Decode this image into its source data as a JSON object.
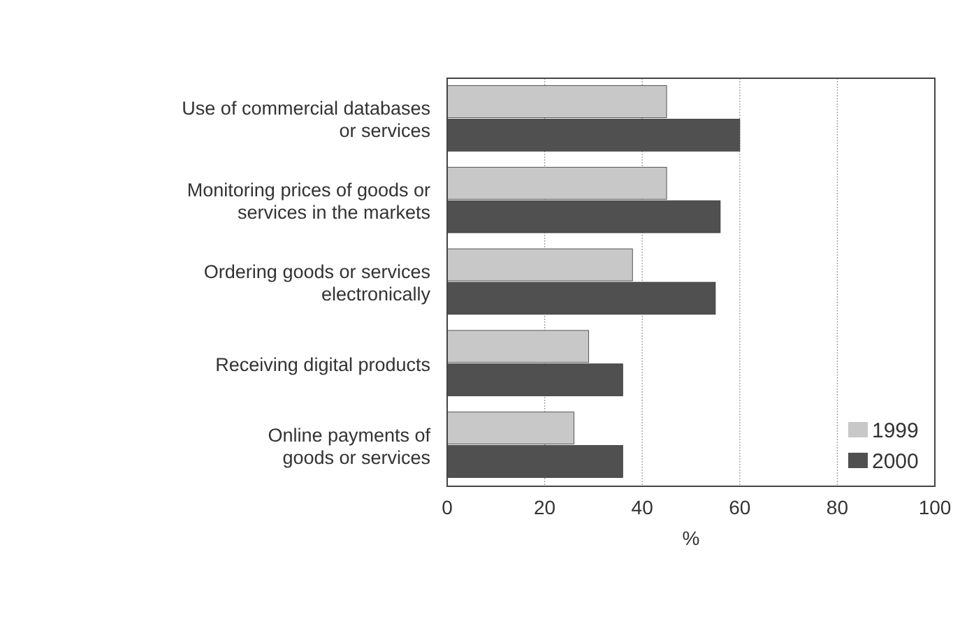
{
  "chart_data": {
    "type": "bar",
    "orientation": "horizontal",
    "xlabel": "%",
    "categories": [
      "Use of commercial databases\nor services",
      "Monitoring prices of goods or\nservices in the markets",
      "Ordering goods or services\nelectronically",
      "Receiving digital products",
      "Online payments of\ngoods or services"
    ],
    "series": [
      {
        "name": "1999",
        "color": "#c8c8c8",
        "values": [
          45,
          45,
          38,
          29,
          26
        ]
      },
      {
        "name": "2000",
        "color": "#505050",
        "values": [
          60,
          56,
          55,
          36,
          36
        ]
      }
    ],
    "xlim": [
      0,
      100
    ],
    "xticks": [
      0,
      20,
      40,
      60,
      80,
      100
    ],
    "grid": "x",
    "legend": "bottom right"
  }
}
